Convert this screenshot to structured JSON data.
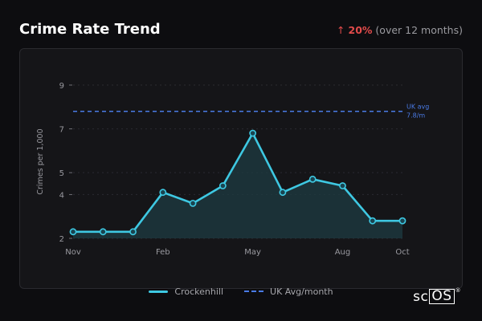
{
  "header": {
    "title": "Crime Rate Trend",
    "change_arrow": "↑",
    "change_pct": "20%",
    "change_period": "(over 12 months)"
  },
  "colors": {
    "series": "#3ec8e2",
    "reference": "#4a7be6",
    "increase": "#e14b4b"
  },
  "logo": {
    "text_a": "sc",
    "text_b": "OS",
    "mark": "®"
  },
  "chart_data": {
    "type": "line",
    "ylabel": "Crimes per 1,000",
    "ylim": [
      2,
      9
    ],
    "yticks": [
      {
        "value": 2,
        "label": "2"
      },
      {
        "value": 4,
        "label": "4"
      },
      {
        "value": 5,
        "label": "5"
      },
      {
        "value": 7,
        "label": "7"
      },
      {
        "value": 9,
        "label": "9"
      }
    ],
    "x_tick_labels": [
      "Nov",
      "",
      "",
      "Feb",
      "",
      "",
      "May",
      "",
      "",
      "Aug",
      "",
      "Oct"
    ],
    "series": [
      {
        "name": "Crockenhill",
        "values": [
          2.3,
          2.3,
          2.3,
          4.1,
          3.6,
          4.4,
          6.8,
          4.1,
          4.7,
          4.4,
          2.8,
          2.8
        ]
      }
    ],
    "reference": {
      "name": "UK Avg/month",
      "value": 7.8,
      "label_line1": "UK avg",
      "label_line2": "7.8/m"
    },
    "grid": true,
    "legend": "bottom-center"
  }
}
